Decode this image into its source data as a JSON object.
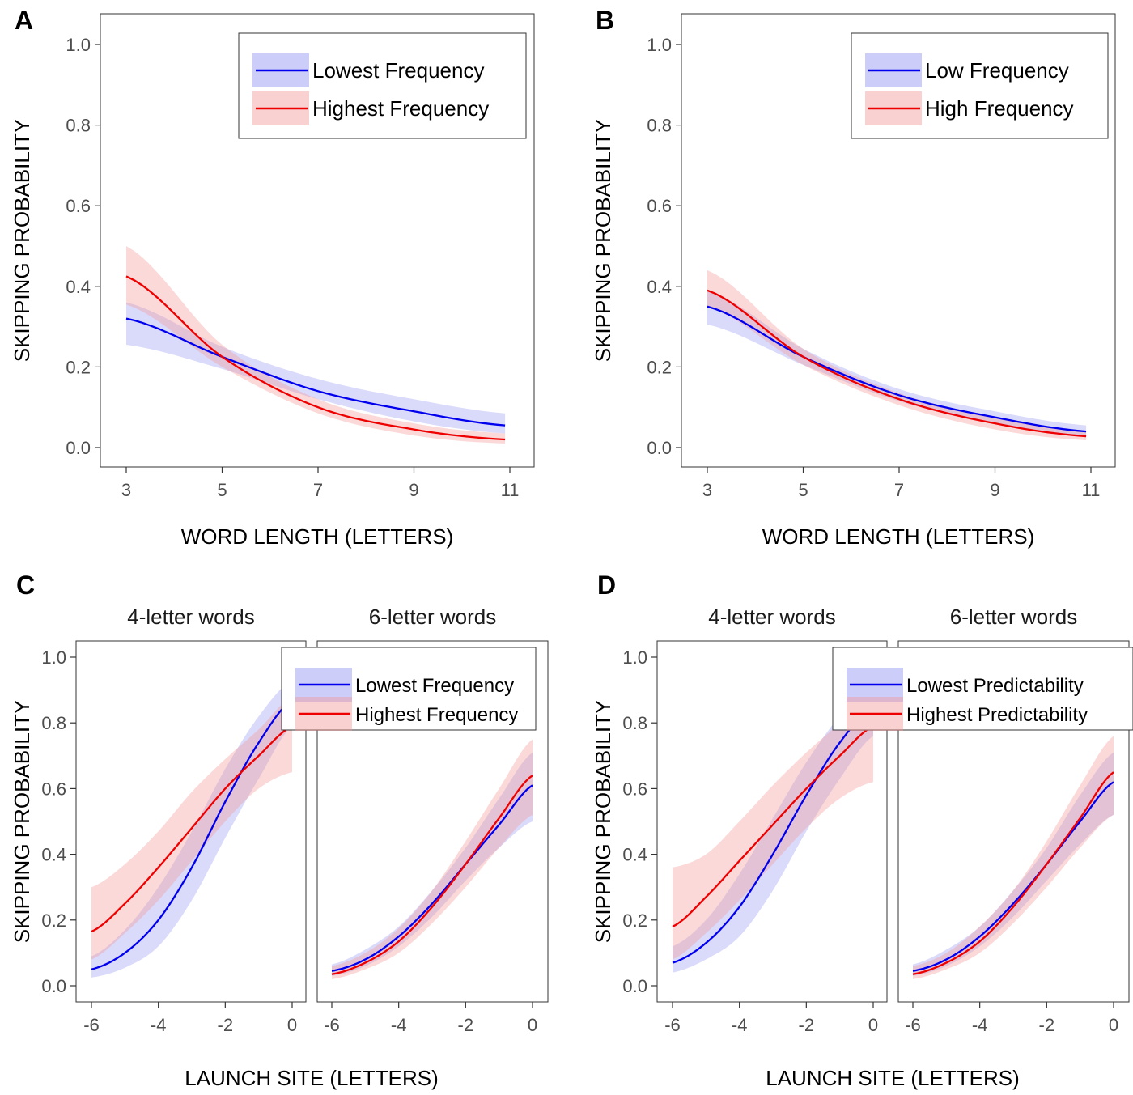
{
  "colors": {
    "low": "#0000ee",
    "high": "#ee0000",
    "low_band": "#7b7bf0",
    "high_band": "#f49a9a"
  },
  "chart_data": [
    {
      "panel": "A",
      "type": "line",
      "xlabel": "WORD LENGTH (LETTERS)",
      "ylabel": "SKIPPING PROBABILITY",
      "xlim": [
        3,
        11
      ],
      "ylim": [
        0,
        1
      ],
      "xticks": [
        3,
        5,
        7,
        9,
        11
      ],
      "yticks": [
        0,
        0.2,
        0.4,
        0.6,
        0.8,
        1.0
      ],
      "legend": {
        "placement": "top-right"
      },
      "series": [
        {
          "name": "Lowest Frequency",
          "color": "low",
          "x": [
            3,
            5,
            7,
            9,
            10.9
          ],
          "y": [
            0.32,
            0.225,
            0.14,
            0.09,
            0.055
          ],
          "lower": [
            0.255,
            0.195,
            0.12,
            0.065,
            0.035
          ],
          "upper": [
            0.36,
            0.25,
            0.17,
            0.12,
            0.085
          ]
        },
        {
          "name": "Highest Frequency",
          "color": "high",
          "x": [
            3,
            5,
            7,
            9,
            10.9
          ],
          "y": [
            0.425,
            0.225,
            0.1,
            0.045,
            0.02
          ],
          "lower": [
            0.355,
            0.2,
            0.085,
            0.03,
            0.01
          ],
          "upper": [
            0.5,
            0.255,
            0.12,
            0.06,
            0.035
          ]
        }
      ]
    },
    {
      "panel": "B",
      "type": "line",
      "xlabel": "WORD LENGTH (LETTERS)",
      "ylabel": "SKIPPING PROBABILITY",
      "xlim": [
        3,
        11
      ],
      "ylim": [
        0,
        1
      ],
      "xticks": [
        3,
        5,
        7,
        9,
        11
      ],
      "yticks": [
        0,
        0.2,
        0.4,
        0.6,
        0.8,
        1.0
      ],
      "legend": {
        "placement": "top-right"
      },
      "series": [
        {
          "name": "Low Frequency",
          "color": "low",
          "x": [
            3,
            5,
            7,
            9,
            10.9
          ],
          "y": [
            0.35,
            0.225,
            0.13,
            0.075,
            0.04
          ],
          "lower": [
            0.305,
            0.205,
            0.115,
            0.06,
            0.03
          ],
          "upper": [
            0.39,
            0.245,
            0.145,
            0.09,
            0.055
          ]
        },
        {
          "name": "High Frequency",
          "color": "high",
          "x": [
            3,
            5,
            7,
            9,
            10.9
          ],
          "y": [
            0.39,
            0.225,
            0.12,
            0.06,
            0.028
          ],
          "lower": [
            0.35,
            0.205,
            0.105,
            0.045,
            0.018
          ],
          "upper": [
            0.44,
            0.245,
            0.135,
            0.075,
            0.04
          ]
        }
      ]
    },
    {
      "panel": "C",
      "type": "line",
      "xlabel": "LAUNCH SITE (LETTERS)",
      "ylabel": "SKIPPING PROBABILITY",
      "xlim": [
        -6,
        0
      ],
      "ylim": [
        0,
        1
      ],
      "xticks": [
        -6,
        -4,
        -2,
        0
      ],
      "yticks": [
        0,
        0.2,
        0.4,
        0.6,
        0.8,
        1.0
      ],
      "legend": {
        "placement": "top-right"
      },
      "series_names": [
        "Lowest Frequency",
        "Highest Frequency"
      ],
      "facets": [
        {
          "label": "4-letter words",
          "series": [
            {
              "name": "Lowest Frequency",
              "color": "low",
              "x": [
                -6,
                -5,
                -4,
                -3,
                -2,
                -1,
                0
              ],
              "y": [
                0.05,
                0.1,
                0.2,
                0.36,
                0.56,
                0.74,
                0.87
              ],
              "lower": [
                0.025,
                0.055,
                0.12,
                0.26,
                0.45,
                0.63,
                0.79
              ],
              "upper": [
                0.09,
                0.17,
                0.3,
                0.47,
                0.66,
                0.82,
                0.93
              ]
            },
            {
              "name": "Highest Frequency",
              "color": "high",
              "x": [
                -6,
                -5,
                -4,
                -3,
                -2,
                -1,
                0
              ],
              "y": [
                0.165,
                0.25,
                0.36,
                0.48,
                0.6,
                0.7,
                0.79
              ],
              "lower": [
                0.08,
                0.16,
                0.26,
                0.38,
                0.5,
                0.6,
                0.65
              ],
              "upper": [
                0.3,
                0.37,
                0.47,
                0.59,
                0.69,
                0.78,
                0.88
              ]
            }
          ]
        },
        {
          "label": "6-letter words",
          "series": [
            {
              "name": "Lowest Frequency",
              "color": "low",
              "x": [
                -6,
                -5,
                -4,
                -3,
                -2,
                -1,
                0
              ],
              "y": [
                0.045,
                0.08,
                0.15,
                0.25,
                0.37,
                0.49,
                0.61
              ],
              "lower": [
                0.03,
                0.06,
                0.12,
                0.21,
                0.32,
                0.42,
                0.5
              ],
              "upper": [
                0.065,
                0.11,
                0.18,
                0.29,
                0.42,
                0.57,
                0.71
              ]
            },
            {
              "name": "Highest Frequency",
              "color": "high",
              "x": [
                -6,
                -5,
                -4,
                -3,
                -2,
                -1,
                0
              ],
              "y": [
                0.035,
                0.07,
                0.135,
                0.24,
                0.37,
                0.51,
                0.64
              ],
              "lower": [
                0.02,
                0.05,
                0.1,
                0.19,
                0.3,
                0.42,
                0.52
              ],
              "upper": [
                0.06,
                0.1,
                0.175,
                0.29,
                0.44,
                0.6,
                0.75
              ]
            }
          ]
        }
      ]
    },
    {
      "panel": "D",
      "type": "line",
      "xlabel": "LAUNCH SITE (LETTERS)",
      "ylabel": "SKIPPING PROBABILITY",
      "xlim": [
        -6,
        0
      ],
      "ylim": [
        0,
        1
      ],
      "xticks": [
        -6,
        -4,
        -2,
        0
      ],
      "yticks": [
        0,
        0.2,
        0.4,
        0.6,
        0.8,
        1.0
      ],
      "legend": {
        "placement": "top-right"
      },
      "series_names": [
        "Lowest Predictability",
        "Highest Predictability"
      ],
      "facets": [
        {
          "label": "4-letter words",
          "series": [
            {
              "name": "Lowest Predictability",
              "color": "low",
              "x": [
                -6,
                -5,
                -4,
                -3,
                -2,
                -1,
                0
              ],
              "y": [
                0.07,
                0.13,
                0.24,
                0.4,
                0.58,
                0.74,
                0.85
              ],
              "lower": [
                0.04,
                0.08,
                0.15,
                0.29,
                0.47,
                0.63,
                0.76
              ],
              "upper": [
                0.12,
                0.2,
                0.34,
                0.51,
                0.68,
                0.82,
                0.91
              ]
            },
            {
              "name": "Highest Predictability",
              "color": "high",
              "x": [
                -6,
                -5,
                -4,
                -3,
                -2,
                -1,
                0
              ],
              "y": [
                0.18,
                0.27,
                0.38,
                0.49,
                0.6,
                0.7,
                0.79
              ],
              "lower": [
                0.08,
                0.16,
                0.26,
                0.37,
                0.48,
                0.57,
                0.62
              ],
              "upper": [
                0.36,
                0.4,
                0.5,
                0.61,
                0.71,
                0.8,
                0.9
              ]
            }
          ]
        },
        {
          "label": "6-letter words",
          "series": [
            {
              "name": "Lowest Predictability",
              "color": "low",
              "x": [
                -6,
                -5,
                -4,
                -3,
                -2,
                -1,
                0
              ],
              "y": [
                0.045,
                0.08,
                0.15,
                0.25,
                0.37,
                0.5,
                0.62
              ],
              "lower": [
                0.03,
                0.06,
                0.12,
                0.21,
                0.32,
                0.43,
                0.52
              ],
              "upper": [
                0.065,
                0.11,
                0.18,
                0.29,
                0.42,
                0.58,
                0.71
              ]
            },
            {
              "name": "Highest Predictability",
              "color": "high",
              "x": [
                -6,
                -5,
                -4,
                -3,
                -2,
                -1,
                0
              ],
              "y": [
                0.035,
                0.07,
                0.135,
                0.24,
                0.37,
                0.51,
                0.65
              ],
              "lower": [
                0.02,
                0.05,
                0.1,
                0.19,
                0.3,
                0.42,
                0.52
              ],
              "upper": [
                0.06,
                0.1,
                0.18,
                0.29,
                0.44,
                0.61,
                0.76
              ]
            }
          ]
        }
      ]
    }
  ]
}
